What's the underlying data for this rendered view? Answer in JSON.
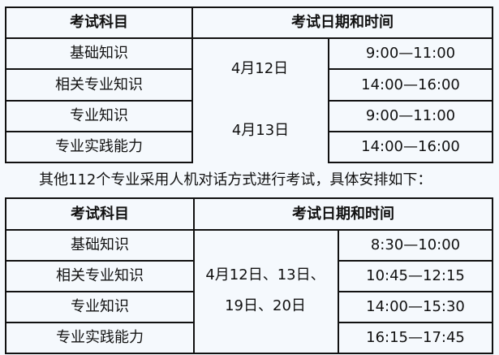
{
  "table1": {
    "headers": [
      "考试科目",
      "考试日期和时间"
    ],
    "subjects": [
      "基础知识",
      "相关专业知识",
      "专业知识",
      "专业实践能力"
    ],
    "dates": [
      "4月12日",
      "4月13日"
    ],
    "times": [
      "9:00—11:00",
      "14:00—16:00",
      "9:00—11:00",
      "14:00—16:00"
    ]
  },
  "note": "其他112个专业采用人机对话方式进行考试，具体安排如下：",
  "table2": {
    "headers": [
      "考试科目",
      "考试日期和时间"
    ],
    "subjects": [
      "基础知识",
      "相关专业知识",
      "专业知识",
      "专业实践能力"
    ],
    "dates": "4月12日、13日、19日、20日",
    "times": [
      "8:30—10:00",
      "10:45—12:15",
      "14:00—15:30",
      "16:15—17:45"
    ]
  }
}
